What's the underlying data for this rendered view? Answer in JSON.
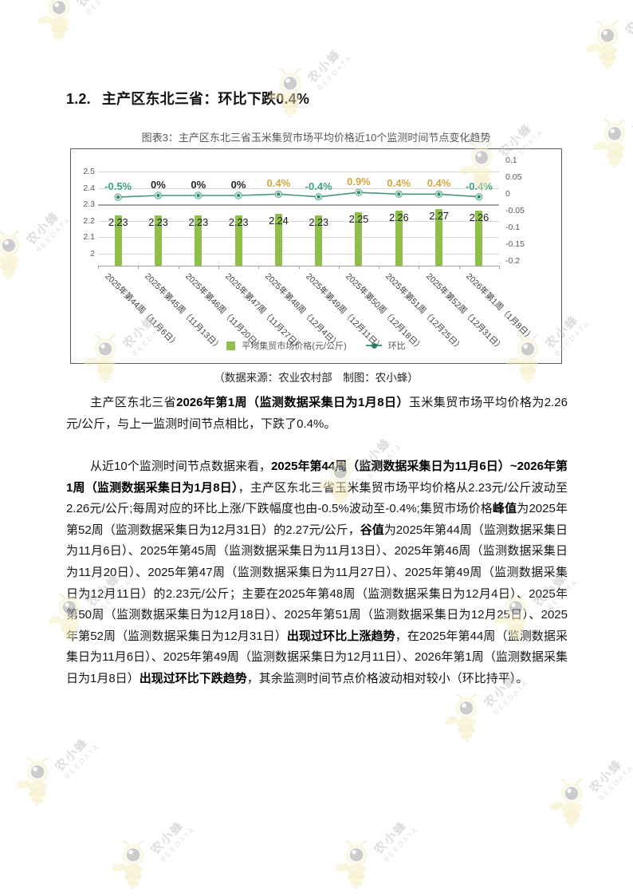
{
  "page": {
    "heading_num": "1.2.",
    "heading_text": "主产区东北三省：环比下跌0.4%"
  },
  "figure": {
    "title": "图表3：主产区东北三省玉米集贸市场平均价格近10个监测时间节点变化趋势",
    "caption": "（数据来源：农业农村部　制图：农小蜂）",
    "legend": {
      "bar_label": "平均集贸市场价格(元/公斤)",
      "line_label": "环比"
    }
  },
  "chart_data": {
    "type": "combo",
    "categories": [
      "2025年第44周（11月6日）",
      "2025年第45周（11月13日）",
      "2025年第46周（11月20日）",
      "2025年第47周（11月27日）",
      "2025年第48周（12月4日）",
      "2025年第49周（12月11日）",
      "2025年第50周（12月18日）",
      "2025年第51周（12月25日）",
      "2025年第52周（12月31日）",
      "2026年第1周（1月8日）"
    ],
    "series": [
      {
        "name": "平均集贸市场价格(元/公斤)",
        "type": "bar",
        "values": [
          2.23,
          2.23,
          2.23,
          2.23,
          2.24,
          2.23,
          2.25,
          2.26,
          2.27,
          2.26
        ],
        "labels": [
          "2.23",
          "2.23",
          "2.23",
          "2.23",
          "2.24",
          "2.23",
          "2.25",
          "2.26",
          "2.27",
          "2.26"
        ],
        "color": "#8FBE4B"
      },
      {
        "name": "环比",
        "type": "line",
        "values": [
          -0.5,
          0,
          0,
          0,
          0.4,
          -0.4,
          0.9,
          0.4,
          0.4,
          -0.4
        ],
        "labels": [
          "-0.5%",
          "0%",
          "0%",
          "0%",
          "0.4%",
          "-0.4%",
          "0.9%",
          "0.4%",
          "0.4%",
          "-0.4%"
        ],
        "color": "#459580"
      }
    ],
    "left_axis": {
      "ticks": [
        "2.5",
        "2.4",
        "2.3",
        "2.2",
        "2.1",
        "2"
      ],
      "values": [
        2.5,
        2.4,
        2.3,
        2.2,
        2.1,
        2.0
      ],
      "min": 1.9,
      "max": 2.5
    },
    "right_axis": {
      "ticks": [
        "0.1",
        "0.05",
        "0",
        "-0.05",
        "-0.1",
        "-0.15",
        "-0.2"
      ],
      "min": -0.2,
      "max": 0.1
    },
    "label_colors": {
      "positive": "#D2A63C",
      "zero": "#262626",
      "negative": "#3FA37E"
    },
    "marker": {
      "ring": "#cde8d8",
      "ring_border": "#67ab8f",
      "dot": "#2e8565"
    },
    "grid": true,
    "legend_position": "bottom"
  },
  "paragraphs": [
    {
      "segments": [
        {
          "t": "主产区东北三省",
          "b": 0
        },
        {
          "t": "2026年第1周（监测数据采集日为1月8日）",
          "b": 1
        },
        {
          "t": "玉米集贸市场平均价格为2.26元/公斤，与上一监测时间节点相比，下跌了0.4%。",
          "b": 0
        }
      ]
    },
    {
      "segments": [
        {
          "t": "从近10个监测时间节点数据来看，",
          "b": 0
        },
        {
          "t": "2025年第44周（监测数据采集日为11月6日）~2026年第1周（监测数据采集日为1月8日）",
          "b": 1
        },
        {
          "t": "，主产区东北三省玉米集贸市场平均价格从2.23元/公斤波动至2.26元/公斤;每周对应的环比上涨/下跌幅度也由-0.5%波动至-0.4%;集贸市场价格",
          "b": 0
        },
        {
          "t": "峰值",
          "b": 1
        },
        {
          "t": "为2025年第52周（监测数据采集日为12月31日）的2.27元/公斤，",
          "b": 0
        },
        {
          "t": "谷值",
          "b": 1
        },
        {
          "t": "为2025年第44周（监测数据采集日为11月6日）、2025年第45周（监测数据采集日为11月13日）、2025年第46周（监测数据采集日为11月20日）、2025年第47周（监测数据采集日为11月27日）、2025年第49周（监测数据采集日为12月11日）的2.23元/公斤；主要在2025年第48周（监测数据采集日为12月4日）、2025年第50周（监测数据采集日为12月18日）、2025年第51周（监测数据采集日为12月25日）、2025年第52周（监测数据采集日为12月31日）",
          "b": 0
        },
        {
          "t": "出现过环比上涨趋势",
          "b": 1
        },
        {
          "t": "，在2025年第44周（监测数据采集日为11月6日）、2025年第49周（监测数据采集日为12月11日）、2026年第1周（监测数据采集日为1月8日）",
          "b": 0
        },
        {
          "t": "出现过环比下跌趋势",
          "b": 1
        },
        {
          "t": "，其余监测时间节点价格波动相对较小（环比持平）。",
          "b": 0
        }
      ]
    }
  ],
  "watermark": {
    "text": "农小蜂",
    "subtext": "BEEDATA"
  }
}
